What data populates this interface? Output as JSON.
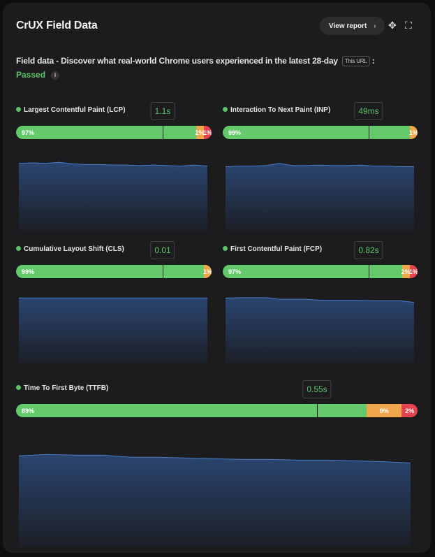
{
  "header": {
    "title": "CrUX Field Data",
    "view_report": "View report",
    "chevron": "›",
    "move_icon": "✥",
    "fullscreen_icon": "⛶"
  },
  "summary": {
    "description": "Field data - Discover what real-world Chrome users experienced in the latest 28-day",
    "scope": "This URL",
    "colon": ":",
    "status": "Passed",
    "info": "i"
  },
  "colors": {
    "good": "#63c96b",
    "needs_improvement": "#f0a64a",
    "poor": "#e5434f",
    "chart_line": "#4a7bc4"
  },
  "metrics": [
    {
      "label": "Largest Contentful Paint (LCP)",
      "value": "1.1s",
      "good": "97%",
      "ni": "2%",
      "poor": "1%",
      "gp": 97,
      "np": 2,
      "pp": 1,
      "marker": 0.75,
      "trend": [
        97.5,
        97.6,
        97.5,
        97.7,
        97.4,
        97.3,
        97.3,
        97.2,
        97.2,
        97.1,
        97.2,
        97.1,
        97.0,
        97.2,
        97.0
      ]
    },
    {
      "label": "Interaction To Next Paint (INP)",
      "value": "49ms",
      "good": "99%",
      "ni": "1%",
      "poor": "",
      "gp": 99,
      "np": 1,
      "pp": 0,
      "marker": 0.75,
      "trend": [
        98.9,
        99.0,
        99.0,
        99.1,
        99.5,
        99.1,
        99.1,
        99.2,
        99.1,
        99.1,
        99.2,
        99.0,
        99.0,
        98.9,
        98.9
      ]
    },
    {
      "label": "Cumulative Layout Shift (CLS)",
      "value": "0.01",
      "good": "99%",
      "ni": "1%",
      "poor": "",
      "gp": 99,
      "np": 1,
      "pp": 0,
      "marker": 0.75,
      "trend": [
        99.9,
        99.9,
        99.9,
        99.9,
        99.9,
        99.9,
        99.9,
        99.9,
        99.9,
        99.9,
        99.9,
        99.9,
        99.9,
        99.9,
        99.9
      ]
    },
    {
      "label": "First Contentful Paint (FCP)",
      "value": "0.82s",
      "good": "97%",
      "ni": "2%",
      "poor": "1%",
      "gp": 97,
      "np": 2,
      "pp": 1,
      "marker": 0.75,
      "trend": [
        97.6,
        97.7,
        97.7,
        97.7,
        97.4,
        97.4,
        97.4,
        97.2,
        97.2,
        97.2,
        97.2,
        97.1,
        97.1,
        97.1,
        96.8
      ]
    },
    {
      "label": "Time To First Byte (TTFB)",
      "value": "0.55s",
      "good": "89%",
      "ni": "9%",
      "poor": "2%",
      "gp": 89,
      "np": 9,
      "pp": 2,
      "marker": 0.75,
      "trend": [
        89.8,
        90.0,
        89.9,
        89.9,
        89.6,
        89.6,
        89.5,
        89.4,
        89.3,
        89.3,
        89.2,
        89.2,
        89.1,
        89.0,
        88.8
      ]
    }
  ]
}
